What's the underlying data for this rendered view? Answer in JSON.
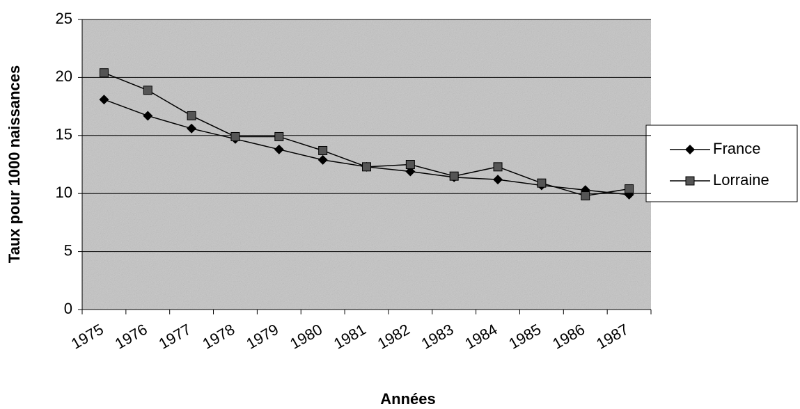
{
  "chart_data": {
    "type": "line",
    "x_label": "Années",
    "y_label": "Taux pour 1000 naissances",
    "categories": [
      "1975",
      "1976",
      "1977",
      "1978",
      "1979",
      "1980",
      "1981",
      "1982",
      "1983",
      "1984",
      "1985",
      "1986",
      "1987"
    ],
    "series": [
      {
        "name": "France",
        "color": "#000000",
        "marker": "diamond",
        "values": [
          18.1,
          16.7,
          15.6,
          14.7,
          13.8,
          12.9,
          12.3,
          11.9,
          11.4,
          11.2,
          10.7,
          10.3,
          9.9
        ]
      },
      {
        "name": "Lorraine",
        "color": "#000000",
        "marker": "square",
        "values": [
          20.4,
          18.9,
          16.7,
          14.9,
          14.9,
          13.7,
          12.3,
          12.5,
          11.5,
          12.3,
          10.9,
          9.8,
          10.4
        ]
      }
    ],
    "ylim": [
      0,
      25
    ],
    "yticks": [
      0,
      5,
      10,
      15,
      20,
      25
    ],
    "grid": true,
    "legend": "right"
  }
}
